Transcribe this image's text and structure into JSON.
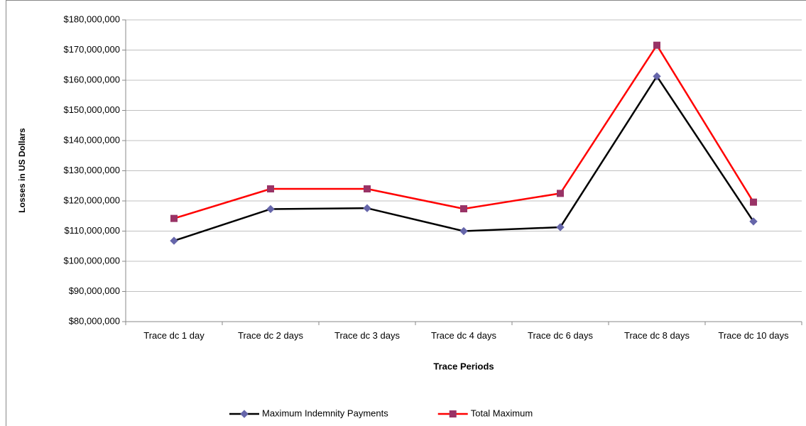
{
  "chart_data": {
    "type": "line",
    "x_label": "Trace Periods",
    "y_label": "Losses in US Dollars",
    "categories": [
      "Trace dc 1 day",
      "Trace dc 2 days",
      "Trace dc 3 days",
      "Trace dc 4 days",
      "Trace dc 6 days",
      "Trace dc 8 days",
      "Trace dc 10 days"
    ],
    "series": [
      {
        "name": "Maximum Indemnity Payments",
        "color": "#000000",
        "marker_color": "#6666aa",
        "marker": "diamond",
        "values": [
          106800000,
          117300000,
          117600000,
          110000000,
          111300000,
          161300000,
          113200000
        ]
      },
      {
        "name": "Total Maximum",
        "color": "#ff0000",
        "marker_color": "#993366",
        "marker": "square",
        "values": [
          114200000,
          124000000,
          124000000,
          117400000,
          122500000,
          171600000,
          119600000
        ]
      }
    ],
    "ylim": [
      80000000,
      180000000
    ],
    "yticks": [
      {
        "value": 80000000,
        "label": "$80,000,000"
      },
      {
        "value": 90000000,
        "label": "$90,000,000"
      },
      {
        "value": 100000000,
        "label": "$100,000,000"
      },
      {
        "value": 110000000,
        "label": "$110,000,000"
      },
      {
        "value": 120000000,
        "label": "$120,000,000"
      },
      {
        "value": 130000000,
        "label": "$130,000,000"
      },
      {
        "value": 140000000,
        "label": "$140,000,000"
      },
      {
        "value": 150000000,
        "label": "$150,000,000"
      },
      {
        "value": 160000000,
        "label": "$160,000,000"
      },
      {
        "value": 170000000,
        "label": "$170,000,000"
      },
      {
        "value": 180000000,
        "label": "$180,000,000"
      }
    ],
    "grid": true,
    "legend": "bottom"
  }
}
